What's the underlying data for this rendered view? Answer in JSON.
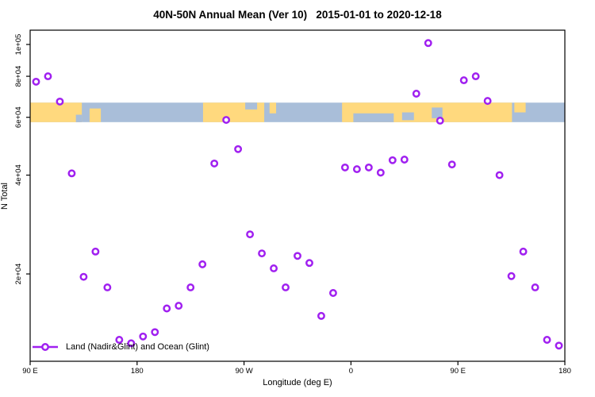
{
  "title": "40N-50N Annual Mean (Ver 10)   2015-01-01 to 2020-12-18",
  "axis": {
    "x_label": "Longitude (deg E)",
    "y_label": "N Total"
  },
  "legend": {
    "label": "Land (Nadir&Glint) and Ocean (Glint)"
  },
  "colors": {
    "marker": "#A020F0",
    "land": "#FFD97E",
    "ocean": "#A9BED9",
    "axis": "#000000"
  },
  "chart_data": {
    "type": "scatter",
    "title": "40N-50N Annual Mean (Ver 10)   2015-01-01 to 2020-12-18",
    "xlabel": "Longitude (deg E)",
    "ylabel": "N Total",
    "legend_position": "bottom-left",
    "grid": false,
    "x_axis": {
      "range": [
        90,
        540
      ],
      "ticks": [
        {
          "label": "90 E",
          "lon": 90
        },
        {
          "label": "180",
          "lon": 180
        },
        {
          "label": "90 W",
          "lon": 270
        },
        {
          "label": "0",
          "lon": 360
        },
        {
          "label": "90 E",
          "lon": 450
        },
        {
          "label": "180",
          "lon": 540
        }
      ]
    },
    "y_axis": {
      "scale": "log",
      "range": [
        10800,
        110000
      ],
      "ticks": [
        {
          "label": "1e+05",
          "value": 100000
        },
        {
          "label": "8e+04",
          "value": 80000
        },
        {
          "label": "6e+04",
          "value": 60000
        },
        {
          "label": "4e+04",
          "value": 40000
        },
        {
          "label": "2e+04",
          "value": 20000
        }
      ]
    },
    "series": [
      {
        "name": "Land (Nadir&Glint) and Ocean (Glint)",
        "marker": "open-circle",
        "color": "#A020F0",
        "x_deg_e": [
          95,
          105,
          115,
          125,
          135,
          145,
          155,
          165,
          175,
          185,
          195,
          205,
          215,
          225,
          235,
          245,
          255,
          265,
          275,
          285,
          295,
          305,
          315,
          325,
          335,
          345,
          355,
          365,
          375,
          385,
          395,
          405,
          415,
          425,
          435,
          445,
          455,
          465,
          475,
          485,
          495,
          505,
          515,
          525,
          535
        ],
        "n_total": [
          77000,
          80000,
          67000,
          40500,
          19600,
          23400,
          18200,
          12600,
          12300,
          12900,
          13300,
          15700,
          16000,
          18200,
          21400,
          43400,
          58900,
          48000,
          26400,
          23100,
          20800,
          18200,
          22700,
          21600,
          14900,
          17500,
          42200,
          41700,
          42200,
          40700,
          44400,
          44600,
          70800,
          101000,
          58600,
          43100,
          77800,
          80000,
          67300,
          40000,
          19700,
          23400,
          18200,
          12600,
          12100
        ]
      }
    ],
    "map_band": {
      "description": "land/ocean strip for 40N-50N latitude band",
      "value_top": 66500,
      "value_bottom": 58000,
      "land_segments": [
        {
          "lon": [
            90,
            133.5
          ],
          "v": [
            0,
            1
          ]
        },
        {
          "lon": [
            140,
            149.5
          ],
          "v": [
            0.3,
            1
          ]
        },
        {
          "lon": [
            235.5,
            287
          ],
          "v": [
            0,
            1
          ]
        },
        {
          "lon": [
            291.5,
            297
          ],
          "v": [
            0,
            0.55
          ]
        },
        {
          "lon": [
            352.5,
            495.5
          ],
          "v": [
            0,
            1
          ]
        },
        {
          "lon": [
            497.5,
            507
          ],
          "v": [
            0,
            0.5
          ]
        }
      ],
      "ocean_patches": [
        {
          "lon": [
            128.5,
            133.5
          ],
          "v": [
            0.62,
            1
          ]
        },
        {
          "lon": [
            271,
            281
          ],
          "v": [
            0,
            0.35
          ]
        },
        {
          "lon": [
            362,
            396
          ],
          "v": [
            0.55,
            1
          ]
        },
        {
          "lon": [
            403,
            413
          ],
          "v": [
            0.5,
            0.9
          ]
        },
        {
          "lon": [
            428,
            437
          ],
          "v": [
            0.25,
            0.8
          ]
        }
      ]
    }
  }
}
